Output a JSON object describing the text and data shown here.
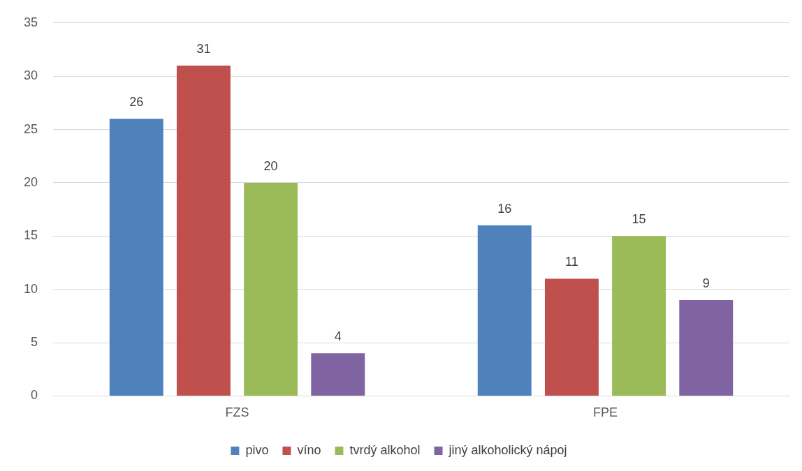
{
  "chart_data": {
    "type": "bar",
    "categories": [
      "FZS",
      "FPE"
    ],
    "series": [
      {
        "name": "pivo",
        "color": "#4f81bd",
        "values": [
          26,
          16
        ]
      },
      {
        "name": "víno",
        "color": "#c0504d",
        "values": [
          31,
          11
        ]
      },
      {
        "name": "tvrdý alkohol",
        "color": "#9bbb59",
        "values": [
          20,
          15
        ]
      },
      {
        "name": "jiný alkoholický nápoj",
        "color": "#8064a2",
        "values": [
          4,
          9
        ]
      }
    ],
    "ylim": [
      0,
      35
    ],
    "yticks": [
      0,
      5,
      10,
      15,
      20,
      25,
      30,
      35
    ],
    "grid": "y",
    "legend": "bottom",
    "data_labels": true
  }
}
